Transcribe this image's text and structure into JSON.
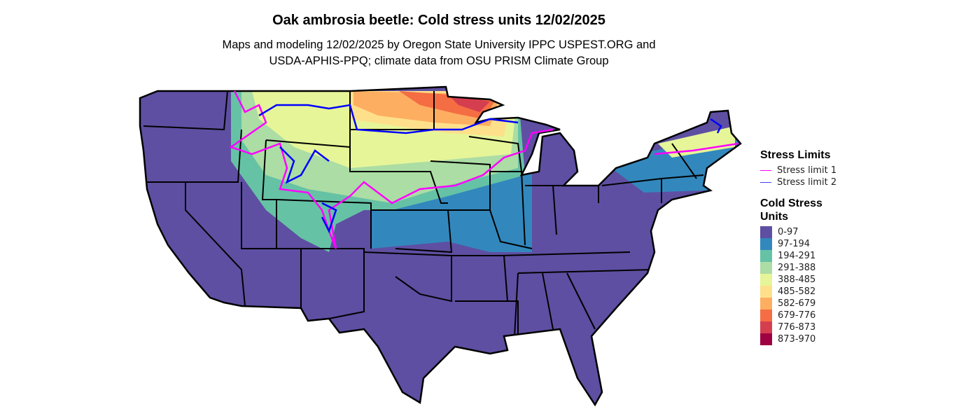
{
  "title": "Oak ambrosia beetle: Cold stress units 12/02/2025",
  "subtitle_lines": [
    "Maps and modeling 12/02/2025 by Oregon State University IPPC USPEST.ORG and",
    "USDA-APHIS-PPQ; climate data from OSU PRISM Climate Group"
  ],
  "legend": {
    "stress_title": "Stress Limits",
    "stress_items": [
      {
        "label": "Stress limit 1",
        "color": "#ff00ff"
      },
      {
        "label": "Stress limit 2",
        "color": "#0000ff"
      }
    ],
    "units_title": "Cold Stress Units",
    "units_items": [
      {
        "label": "0-97",
        "color": "#5e4fa2"
      },
      {
        "label": "97-194",
        "color": "#3288bd"
      },
      {
        "label": "194-291",
        "color": "#66c2a5"
      },
      {
        "label": "291-388",
        "color": "#abdda4"
      },
      {
        "label": "388-485",
        "color": "#e6f598"
      },
      {
        "label": "485-582",
        "color": "#fee08b"
      },
      {
        "label": "582-679",
        "color": "#fdae61"
      },
      {
        "label": "679-776",
        "color": "#f46d43"
      },
      {
        "label": "776-873",
        "color": "#d53e4f"
      },
      {
        "label": "873-970",
        "color": "#9e0142"
      }
    ]
  }
}
